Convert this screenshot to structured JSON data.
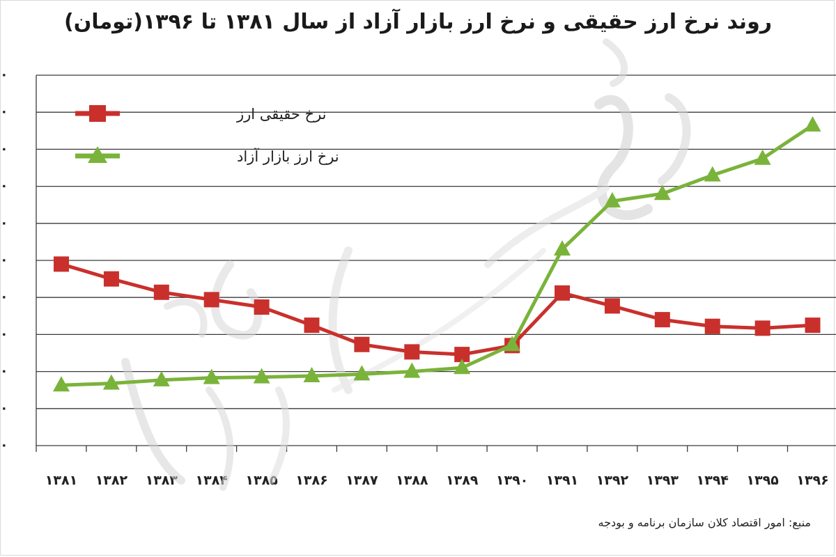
{
  "chart_data": {
    "type": "line",
    "title": "روند نرخ ارز حقیقی و نرخ ارز بازار آزاد از سال ۱۳۸۱ تا ۱۳۹۶(تومان)",
    "categories": [
      "۱۳۸۱",
      "۱۳۸۲",
      "۱۳۸۳",
      "۱۳۸۴",
      "۱۳۸۵",
      "۱۳۸۶",
      "۱۳۸۷",
      "۱۳۸۸",
      "۱۳۸۹",
      "۱۳۹۰",
      "۱۳۹۱",
      "۱۳۹۲",
      "۱۳۹۳",
      "۱۳۹۴",
      "۱۳۹۵",
      "۱۳۹۶"
    ],
    "series": [
      {
        "name": "نرخ حقیقی ارز",
        "color": "#c9302c",
        "marker": "square",
        "values": [
          4.9,
          4.5,
          4.14,
          3.94,
          3.74,
          3.25,
          2.73,
          2.53,
          2.46,
          2.7,
          4.12,
          3.77,
          3.4,
          3.22,
          3.17,
          3.25
        ]
      },
      {
        "name": "نرخ ارز بازار آزاد",
        "color": "#7ab33a",
        "marker": "triangle",
        "values": [
          1.63,
          1.68,
          1.77,
          1.83,
          1.85,
          1.88,
          1.93,
          2.0,
          2.1,
          2.72,
          5.3,
          6.6,
          6.8,
          7.3,
          7.75,
          8.65
        ]
      }
    ],
    "ylim": [
      0,
      10
    ],
    "ytick_count": 11,
    "ytick_glyph": "۰",
    "grid": true,
    "legend_position": "top-left"
  },
  "source": "منبع: امور اقتصاد کلان سازمان برنامه و بودجه",
  "watermark": "دنیای اقتصاد"
}
